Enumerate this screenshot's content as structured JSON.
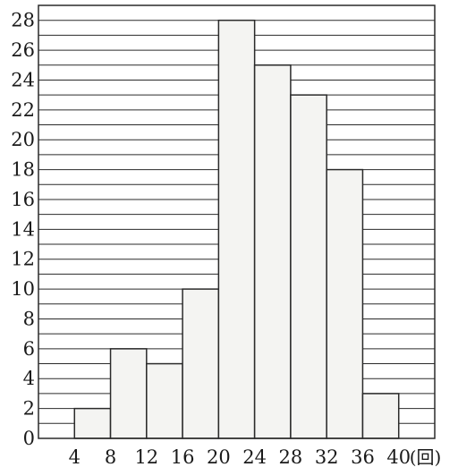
{
  "chart_data": {
    "type": "bar",
    "title": "",
    "xlabel": "",
    "ylabel": "",
    "x_unit": "(回)",
    "x_ticks": [
      "4",
      "8",
      "12",
      "16",
      "20",
      "24",
      "28",
      "32",
      "36",
      "40"
    ],
    "y_ticks": [
      "0",
      "2",
      "4",
      "6",
      "8",
      "10",
      "12",
      "14",
      "16",
      "18",
      "20",
      "22",
      "24",
      "26",
      "28"
    ],
    "bins": [
      [
        4,
        8
      ],
      [
        8,
        12
      ],
      [
        12,
        16
      ],
      [
        16,
        20
      ],
      [
        20,
        24
      ],
      [
        24,
        28
      ],
      [
        28,
        32
      ],
      [
        32,
        36
      ],
      [
        36,
        40
      ]
    ],
    "values": [
      2,
      6,
      5,
      10,
      28,
      25,
      23,
      18,
      3
    ],
    "xlim": [
      0,
      44
    ],
    "ylim": [
      0,
      29
    ],
    "grid": true,
    "grid_step": 1,
    "colors": {
      "bar_fill": "#f4f4f2",
      "line": "#2a2a2a",
      "background": "#ffffff"
    }
  }
}
